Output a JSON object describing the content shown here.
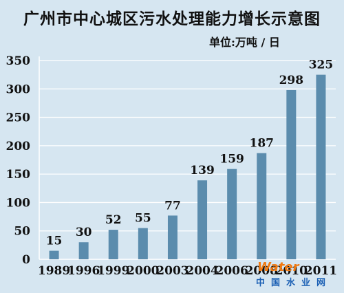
{
  "chart_data": {
    "type": "bar",
    "title": "广州市中心城区污水处理能力增长示意图",
    "unit_label": "单位:万吨 / 日",
    "categories": [
      "1989",
      "1996",
      "1999",
      "2000",
      "2003",
      "2004",
      "2006",
      "2008",
      "2010",
      "2011"
    ],
    "values": [
      15,
      30,
      52,
      55,
      77,
      139,
      159,
      187,
      298,
      325
    ],
    "ylim": [
      0,
      350
    ],
    "yticks": [
      0,
      50,
      100,
      150,
      200,
      250,
      300,
      350
    ],
    "grid": true,
    "colors": {
      "bar": "#5b8cad",
      "grid": "#ffffff",
      "background": "#d6e6f1"
    }
  },
  "watermark": {
    "word": "Water",
    "site": "中国水业网"
  }
}
